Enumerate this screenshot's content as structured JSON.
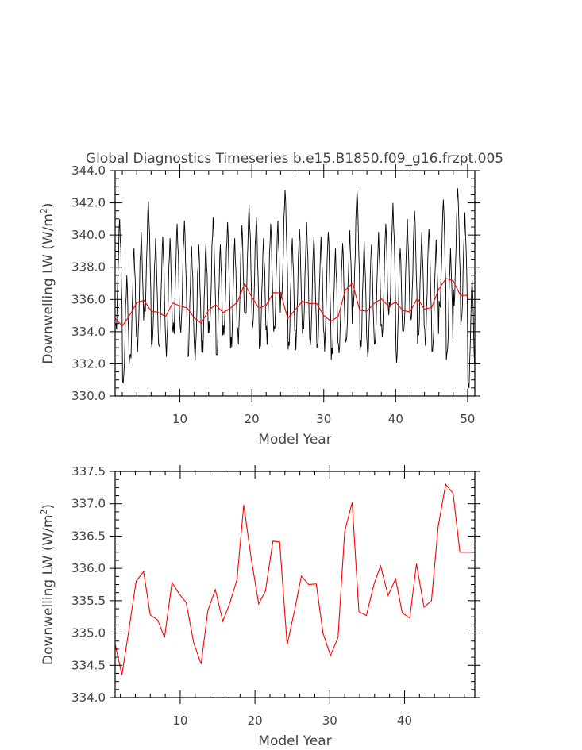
{
  "title": "Global Diagnostics Timeseries b.e15.B1850.f09_g16.frzpt.005",
  "colors": {
    "monthly": "#000000",
    "annual": "#ff0000",
    "axis": "#000000",
    "text": "#444444"
  },
  "chart_data": [
    {
      "type": "line",
      "title": "Global Diagnostics Timeseries b.e15.B1850.f09_g16.frzpt.005",
      "xlabel": "Model Year",
      "ylabel_main": "Downwelling LW (W/m",
      "ylabel_sup": "2",
      "ylabel_close": ")",
      "xlim": [
        1,
        51
      ],
      "ylim": [
        330.0,
        344.0
      ],
      "xticks": [
        10,
        20,
        30,
        40,
        50
      ],
      "yticks": [
        330.0,
        332.0,
        334.0,
        336.0,
        338.0,
        340.0,
        342.0,
        344.0
      ],
      "ytick_labels": [
        "330.0",
        "332.0",
        "334.0",
        "336.0",
        "338.0",
        "340.0",
        "342.0",
        "344.0"
      ],
      "grid": false,
      "series": [
        {
          "name": "",
          "color": "#000000",
          "style": "monthly",
          "amplitude": 3.2,
          "peaks": [
            341.0,
            337.5,
            339.2,
            340.2,
            342.1,
            339.8,
            339.9,
            339.8,
            340.7,
            340.9,
            339.3,
            339.4,
            339.5,
            341.1,
            339.4,
            340.8,
            339.8,
            340.6,
            341.9,
            341.1,
            339.8,
            340.7,
            340.9,
            342.8,
            339.8,
            340.4,
            340.8,
            339.9,
            339.9,
            340.2,
            339.2,
            339.5,
            340.3,
            342.8,
            339.6,
            339.4,
            340.2,
            340.7,
            342.0,
            339.2,
            341.0,
            341.5,
            340.2,
            340.4,
            339.7,
            342.2,
            339.2,
            342.9,
            341.4,
            337.2
          ]
        },
        {
          "name": "",
          "color": "#ff0000",
          "style": "annual",
          "x": [
            1,
            2,
            3,
            4,
            5,
            6,
            7,
            8,
            9,
            10,
            11,
            12,
            13,
            14,
            15,
            16,
            17,
            18,
            19,
            20,
            21,
            22,
            23,
            24,
            25,
            26,
            27,
            28,
            29,
            30,
            31,
            32,
            33,
            34,
            35,
            36,
            37,
            38,
            39,
            40,
            41,
            42,
            43,
            44,
            45,
            46,
            47,
            48,
            49,
            50
          ],
          "y": [
            334.8,
            334.35,
            335.0,
            335.8,
            335.95,
            335.28,
            335.2,
            334.93,
            335.78,
            335.6,
            335.47,
            334.85,
            334.52,
            335.35,
            335.67,
            335.18,
            335.45,
            335.83,
            336.98,
            336.15,
            335.45,
            335.65,
            336.42,
            336.41,
            334.82,
            335.35,
            335.88,
            335.75,
            335.76,
            335.0,
            334.65,
            334.93,
            336.57,
            337.02,
            335.33,
            335.27,
            335.75,
            336.04,
            335.58,
            335.84,
            335.31,
            335.23,
            336.07,
            335.4,
            335.5,
            336.65,
            337.3,
            337.16,
            336.25,
            336.25
          ]
        }
      ]
    },
    {
      "type": "line",
      "title": "",
      "xlabel": "Model Year",
      "ylabel_main": "Downwelling LW (W/m",
      "ylabel_sup": "2",
      "ylabel_close": ")",
      "xlim": [
        1.3,
        49.4
      ],
      "ylim": [
        334.0,
        337.5
      ],
      "xticks": [
        10,
        20,
        30,
        40
      ],
      "yticks": [
        334.0,
        334.5,
        335.0,
        335.5,
        336.0,
        336.5,
        337.0,
        337.5
      ],
      "ytick_labels": [
        "334.0",
        "334.5",
        "335.0",
        "335.5",
        "336.0",
        "336.5",
        "337.0",
        "337.5"
      ],
      "grid": false,
      "series": [
        {
          "name": "",
          "color": "#ff0000",
          "x": [
            1.3,
            2.2,
            3.1,
            4.1,
            5.1,
            6.0,
            7.0,
            7.9,
            8.9,
            9.9,
            10.8,
            11.8,
            12.8,
            13.7,
            14.7,
            15.7,
            16.6,
            17.6,
            18.5,
            19.5,
            20.5,
            21.4,
            22.4,
            23.3,
            24.3,
            25.3,
            26.2,
            27.2,
            28.2,
            29.1,
            30.1,
            31.1,
            32.0,
            33.0,
            33.9,
            34.9,
            35.9,
            36.8,
            37.8,
            38.8,
            39.7,
            40.7,
            41.6,
            42.6,
            43.6,
            44.5,
            45.5,
            46.5,
            47.4,
            48.4,
            49.4
          ],
          "y": [
            334.83,
            334.35,
            335.02,
            335.8,
            335.95,
            335.28,
            335.2,
            334.93,
            335.78,
            335.6,
            335.47,
            334.85,
            334.52,
            335.35,
            335.67,
            335.18,
            335.45,
            335.83,
            336.98,
            336.15,
            335.45,
            335.65,
            336.42,
            336.41,
            334.82,
            335.35,
            335.88,
            335.75,
            335.76,
            335.0,
            334.65,
            334.93,
            336.57,
            337.02,
            335.33,
            335.27,
            335.75,
            336.04,
            335.58,
            335.84,
            335.31,
            335.23,
            336.07,
            335.4,
            335.5,
            336.65,
            337.3,
            337.16,
            336.25,
            336.25,
            336.25
          ]
        }
      ]
    }
  ]
}
